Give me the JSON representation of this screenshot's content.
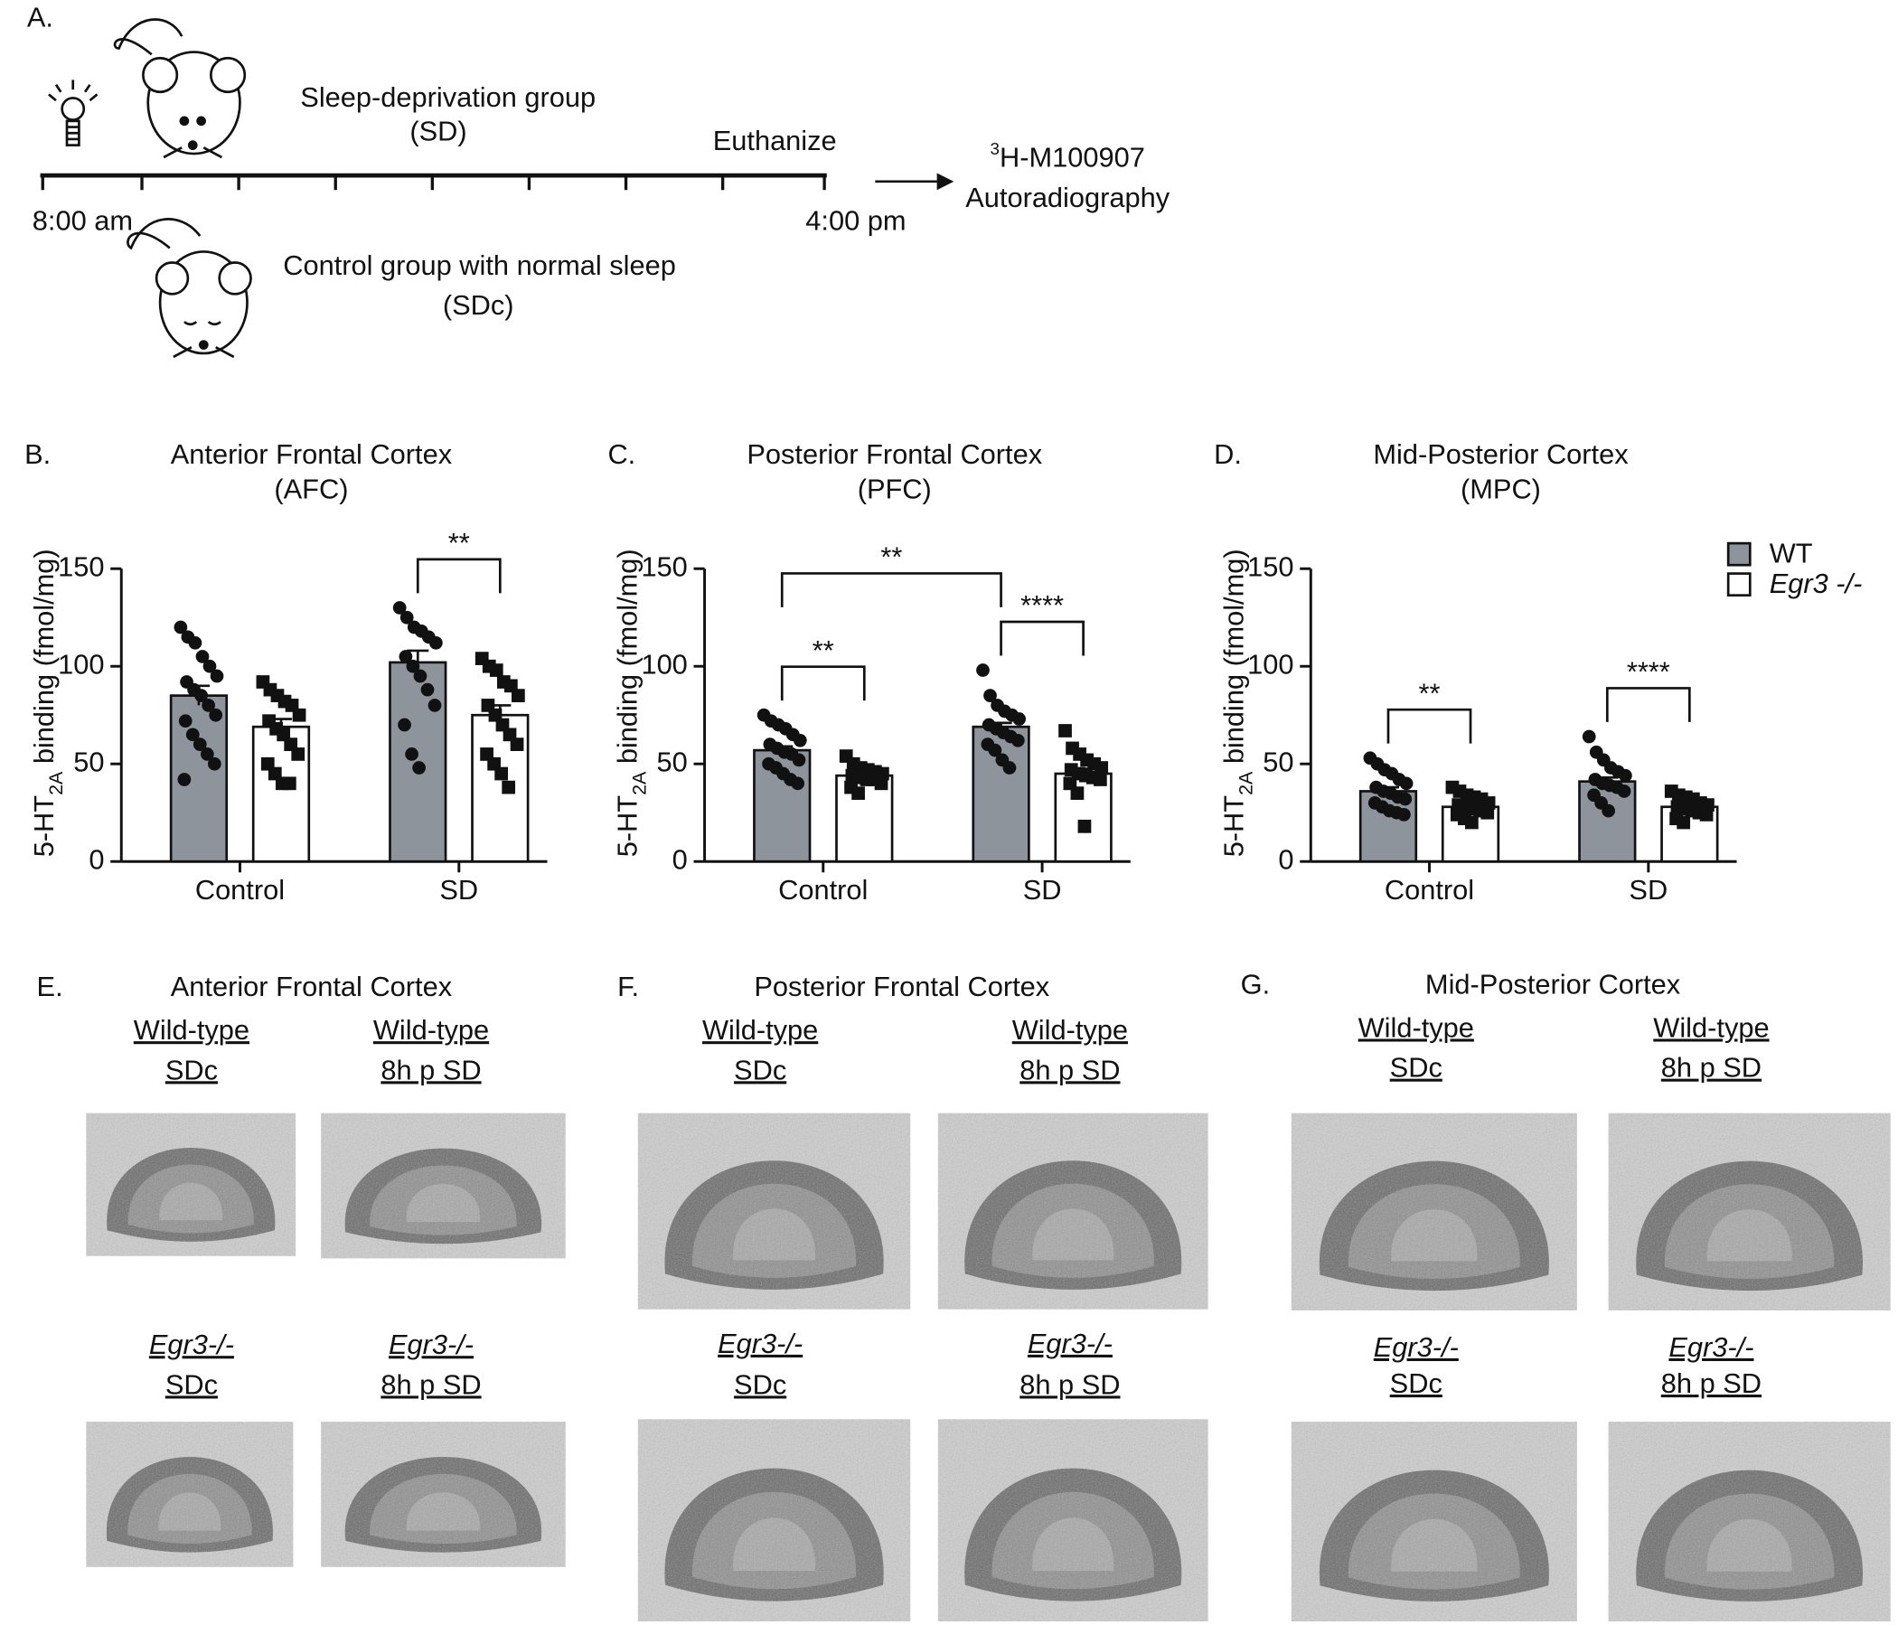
{
  "panel_a": {
    "label": "A.",
    "sd_group": "Sleep-deprivation group",
    "sd_abbr": "(SD)",
    "euthanize": "Euthanize",
    "start_time": "8:00 am",
    "end_time": "4:00 pm",
    "assay_isotope": "3",
    "assay_compound": "H-M100907",
    "assay_method": "Autoradiography",
    "control_group": "Control group with normal sleep",
    "control_abbr": "(SDc)"
  },
  "chart_data": [
    {
      "type": "bar",
      "panel_label": "B.",
      "title": "Anterior Frontal Cortex",
      "subtitle": "(AFC)",
      "y_label": {
        "prefix": "5-HT",
        "sub": "2A",
        "suffix": " binding (fmol/mg)"
      },
      "categories": [
        "Control",
        "SD"
      ],
      "ylim": [
        0,
        150
      ],
      "yticks": [
        0,
        50,
        100,
        150
      ],
      "series": [
        {
          "name": "WT",
          "color": "#8e949c",
          "marker": "circle",
          "values": [
            85,
            102
          ],
          "errors": [
            5,
            6
          ],
          "points": [
            [
              120,
              115,
              112,
              105,
              100,
              95,
              92,
              88,
              85,
              80,
              75,
              72,
              65,
              60,
              55,
              50,
              42
            ],
            [
              130,
              125,
              120,
              118,
              115,
              112,
              105,
              100,
              95,
              88,
              80,
              70,
              55,
              48
            ]
          ]
        },
        {
          "name": "Egr3 -/-",
          "color": "#ffffff",
          "marker": "square",
          "values": [
            69,
            75
          ],
          "errors": [
            4,
            5
          ],
          "points": [
            [
              92,
              88,
              85,
              82,
              80,
              75,
              72,
              68,
              65,
              60,
              55,
              50,
              45,
              40,
              40
            ],
            [
              104,
              100,
              98,
              92,
              90,
              85,
              80,
              75,
              70,
              65,
              60,
              55,
              50,
              45,
              38
            ]
          ]
        }
      ],
      "comparisons": [
        {
          "label": "**",
          "category": 1
        }
      ]
    },
    {
      "type": "bar",
      "panel_label": "C.",
      "title": "Posterior Frontal Cortex",
      "subtitle": "(PFC)",
      "y_label": {
        "prefix": "5-HT",
        "sub": "2A",
        "suffix": " binding (fmol/mg)"
      },
      "categories": [
        "Control",
        "SD"
      ],
      "ylim": [
        0,
        150
      ],
      "yticks": [
        0,
        50,
        100,
        150
      ],
      "series": [
        {
          "name": "WT",
          "color": "#8e949c",
          "marker": "circle",
          "values": [
            57,
            69
          ],
          "errors": [
            2,
            2
          ],
          "points": [
            [
              75,
              72,
              70,
              68,
              65,
              62,
              60,
              58,
              56,
              55,
              52,
              50,
              48,
              45,
              42,
              40
            ],
            [
              98,
              85,
              80,
              77,
              75,
              73,
              70,
              68,
              66,
              64,
              62,
              60,
              57,
              52,
              48
            ]
          ]
        },
        {
          "name": "Egr3 -/-",
          "color": "#ffffff",
          "marker": "square",
          "values": [
            44,
            45
          ],
          "errors": [
            2,
            2.5
          ],
          "points": [
            [
              54,
              50,
              48,
              47,
              46,
              45,
              44,
              43,
              42,
              42,
              40,
              38,
              35
            ],
            [
              67,
              58,
              55,
              52,
              50,
              48,
              47,
              45,
              44,
              43,
              42,
              40,
              35,
              18
            ]
          ]
        }
      ],
      "comparisons": [
        {
          "label": "**",
          "category": 0
        },
        {
          "label": "****",
          "category": 1
        },
        {
          "label": "**",
          "series": 0
        }
      ]
    },
    {
      "type": "bar",
      "panel_label": "D.",
      "title": "Mid-Posterior Cortex",
      "subtitle": "(MPC)",
      "y_label": {
        "prefix": "5-HT",
        "sub": "2A",
        "suffix": " binding (fmol/mg)"
      },
      "categories": [
        "Control",
        "SD"
      ],
      "ylim": [
        0,
        150
      ],
      "yticks": [
        0,
        50,
        100,
        150
      ],
      "legend": "upper right",
      "series": [
        {
          "name": "WT",
          "color": "#8e949c",
          "marker": "circle",
          "values": [
            36,
            41
          ],
          "errors": [
            2,
            2
          ],
          "points": [
            [
              53,
              50,
              47,
              45,
              42,
              40,
              38,
              36,
              35,
              33,
              32,
              30,
              28,
              26,
              25,
              24
            ],
            [
              64,
              56,
              52,
              48,
              46,
              44,
              42,
              40,
              39,
              38,
              36,
              34,
              30,
              26
            ]
          ]
        },
        {
          "name": "Egr3 -/-",
          "color": "#ffffff",
          "marker": "square",
          "values": [
            28,
            28
          ],
          "errors": [
            1.5,
            1
          ],
          "points": [
            [
              38,
              36,
              34,
              33,
              32,
              30,
              29,
              28,
              27,
              26,
              25,
              24,
              22,
              20
            ],
            [
              36,
              34,
              33,
              32,
              30,
              29,
              28,
              27,
              26,
              25,
              24,
              22,
              20
            ]
          ]
        }
      ],
      "comparisons": [
        {
          "label": "**",
          "category": 0
        },
        {
          "label": "****",
          "category": 1
        }
      ]
    }
  ],
  "image_panels": [
    {
      "label": "E.",
      "title": "Anterior Frontal Cortex",
      "captions": [
        [
          "Wild-type",
          "SDc"
        ],
        [
          "Wild-type",
          "8h p SD"
        ],
        [
          "Egr3-/-",
          "SDc"
        ],
        [
          "Egr3-/-",
          "8h p SD"
        ]
      ]
    },
    {
      "label": "F.",
      "title": "Posterior Frontal Cortex",
      "captions": [
        [
          "Wild-type",
          "SDc"
        ],
        [
          "Wild-type",
          "8h p SD"
        ],
        [
          "Egr3-/-",
          "SDc"
        ],
        [
          "Egr3-/-",
          "8h p SD"
        ]
      ]
    },
    {
      "label": "G.",
      "title": "Mid-Posterior Cortex",
      "captions": [
        [
          "Wild-type",
          "SDc"
        ],
        [
          "Wild-type",
          "8h p SD"
        ],
        [
          "Egr3-/-",
          "SDc"
        ],
        [
          "Egr3-/-",
          "8h p SD"
        ]
      ]
    }
  ]
}
